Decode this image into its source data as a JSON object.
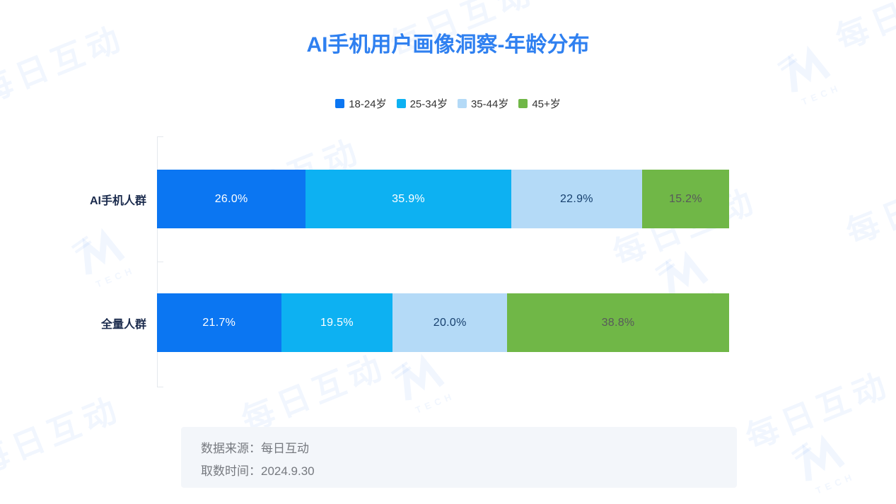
{
  "title": {
    "text": "AI手机用户画像洞察-年龄分布",
    "color": "#2F80F0"
  },
  "chart_data": {
    "type": "bar",
    "orientation": "horizontal",
    "stacked": true,
    "unit": "%",
    "title": "AI手机用户画像洞察-年龄分布",
    "categories": [
      "AI手机人群",
      "全量人群"
    ],
    "series": [
      {
        "name": "18-24岁",
        "color": "#0B76F2",
        "label_color": "#FFFFFF",
        "values": [
          26.0,
          21.7
        ]
      },
      {
        "name": "25-34岁",
        "color": "#0DB1F2",
        "label_color": "#FFFFFF",
        "values": [
          35.9,
          19.5
        ]
      },
      {
        "name": "35-44岁",
        "color": "#B4DAF7",
        "label_color": "#17406E",
        "values": [
          22.9,
          20.0
        ]
      },
      {
        "name": "45+岁",
        "color": "#70B747",
        "label_color": "#58595B",
        "values": [
          15.2,
          38.8
        ]
      }
    ],
    "xlim": [
      0,
      100
    ],
    "value_label_format": "{value:.1f}%",
    "legend_position": "top",
    "grid": false
  },
  "footer": {
    "source_label": "数据来源：",
    "source_value": "每日互动",
    "date_label": "取数时间：",
    "date_value": "2024.9.30"
  },
  "watermark": {
    "text": "每日互动",
    "logo_text": "TECH"
  }
}
